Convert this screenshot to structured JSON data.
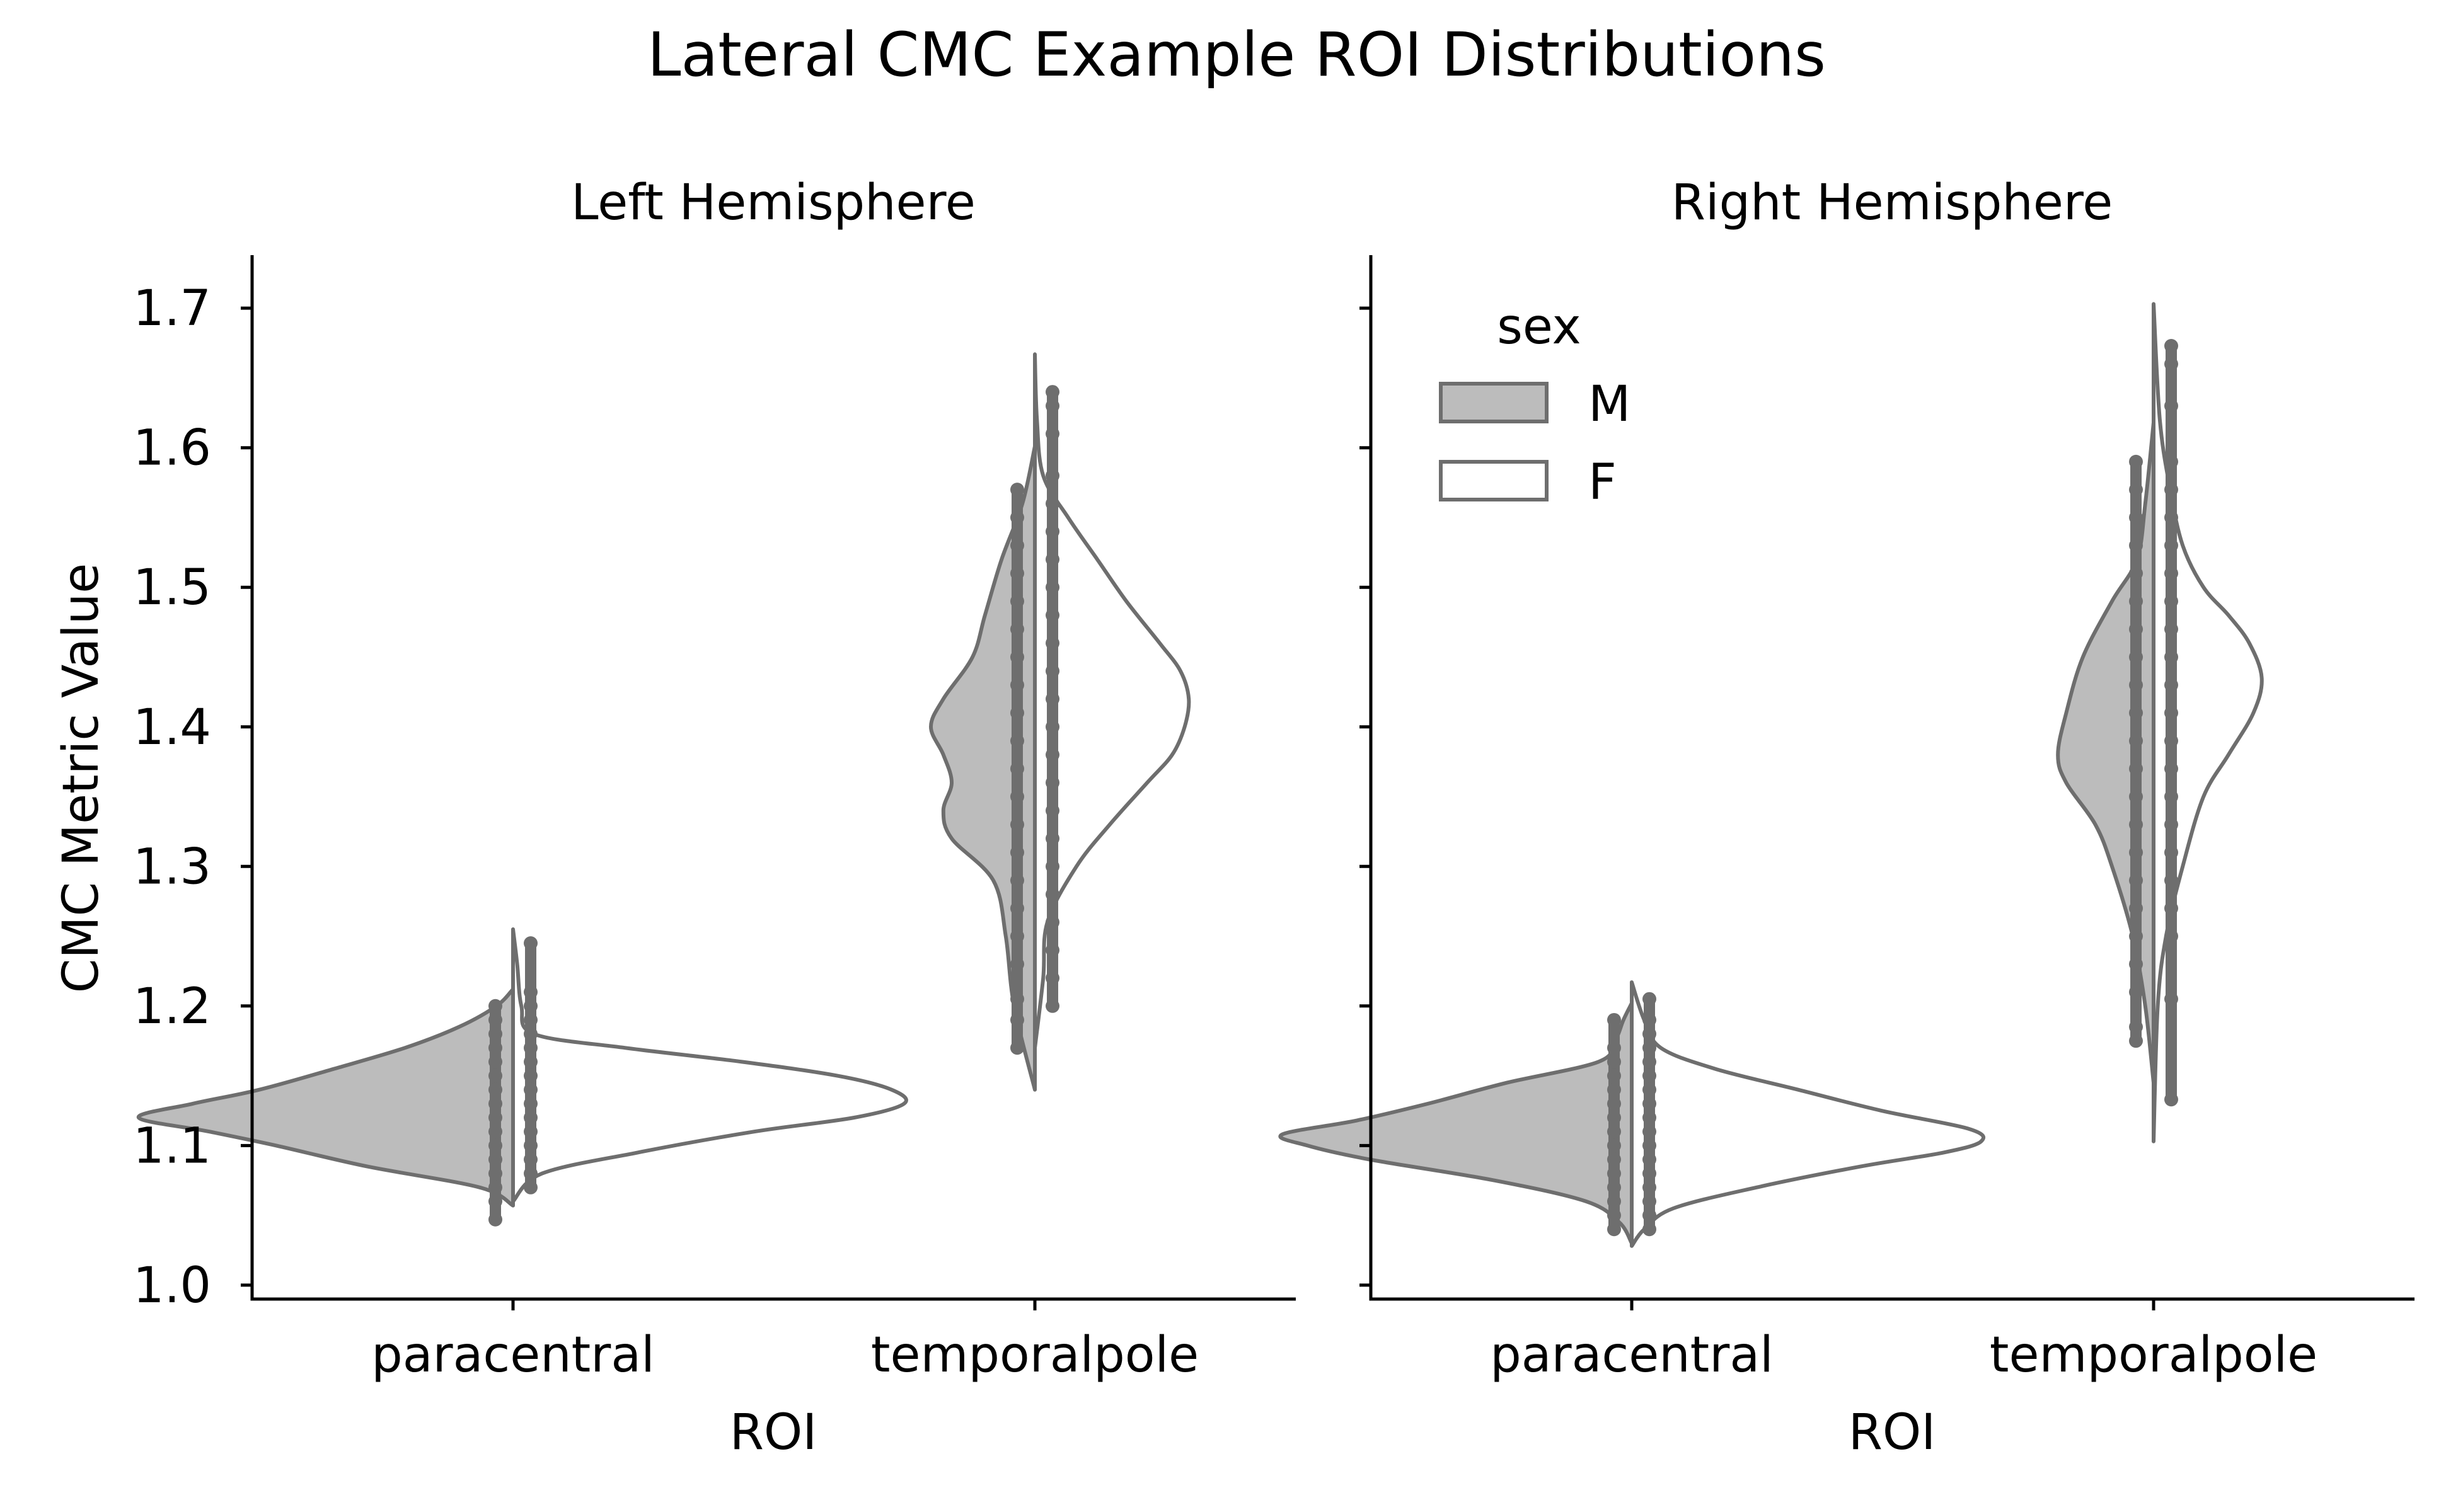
{
  "chart_data": {
    "type": "violin",
    "title": "Lateral CMC Example ROI Distributions",
    "ylabel": "CMC Metric Value",
    "xlabel": "ROI",
    "ylim": [
      0.99,
      1.738
    ],
    "yticks": [
      1.0,
      1.1,
      1.2,
      1.3,
      1.4,
      1.5,
      1.6,
      1.7
    ],
    "ytick_labels": [
      "1.0",
      "1.1",
      "1.2",
      "1.3",
      "1.4",
      "1.5",
      "1.6",
      "1.7"
    ],
    "categories": [
      "paracentral",
      "temporalpole"
    ],
    "split_by": "sex",
    "legend": {
      "title": "sex",
      "placement": "top-left",
      "panel": 1,
      "entries": [
        {
          "label": "M",
          "color": "#bcbcbc"
        },
        {
          "label": "F",
          "color": "#ffffff"
        }
      ]
    },
    "colors": {
      "M_fill": "#bcbcbc",
      "F_fill": "#ffffff",
      "stroke": "#6e6e6e"
    },
    "panels": [
      {
        "title": "Left Hemisphere",
        "violins": [
          {
            "category": "paracentral",
            "M": {
              "profile": [
                [
                  1.057,
                  0.0
                ],
                [
                  1.07,
                  0.08
                ],
                [
                  1.085,
                  0.35
                ],
                [
                  1.1,
                  0.57
                ],
                [
                  1.11,
                  0.73
                ],
                [
                  1.12,
                  0.9
                ],
                [
                  1.13,
                  0.77
                ],
                [
                  1.14,
                  0.61
                ],
                [
                  1.155,
                  0.43
                ],
                [
                  1.17,
                  0.26
                ],
                [
                  1.185,
                  0.13
                ],
                [
                  1.2,
                  0.04
                ],
                [
                  1.212,
                  0.0
                ]
              ],
              "points": [
                1.047,
                1.06,
                1.07,
                1.08,
                1.09,
                1.1,
                1.11,
                1.12,
                1.13,
                1.14,
                1.15,
                1.16,
                1.17,
                1.18,
                1.19,
                1.2
              ]
            },
            "F": {
              "profile": [
                [
                  1.06,
                  0.0
                ],
                [
                  1.08,
                  0.07
                ],
                [
                  1.095,
                  0.3
                ],
                [
                  1.11,
                  0.58
                ],
                [
                  1.12,
                  0.82
                ],
                [
                  1.13,
                  0.94
                ],
                [
                  1.14,
                  0.91
                ],
                [
                  1.15,
                  0.78
                ],
                [
                  1.16,
                  0.55
                ],
                [
                  1.17,
                  0.27
                ],
                [
                  1.18,
                  0.05
                ],
                [
                  1.2,
                  0.02
                ],
                [
                  1.23,
                  0.01
                ],
                [
                  1.255,
                  0.0
                ]
              ],
              "points": [
                1.07,
                1.08,
                1.09,
                1.1,
                1.11,
                1.12,
                1.13,
                1.14,
                1.15,
                1.16,
                1.17,
                1.18,
                1.19,
                1.2,
                1.21,
                1.245
              ]
            }
          },
          {
            "category": "temporalpole",
            "M": {
              "profile": [
                [
                  1.14,
                  0.0
                ],
                [
                  1.2,
                  0.05
                ],
                [
                  1.25,
                  0.07
                ],
                [
                  1.29,
                  0.1
                ],
                [
                  1.32,
                  0.2
                ],
                [
                  1.34,
                  0.22
                ],
                [
                  1.36,
                  0.2
                ],
                [
                  1.38,
                  0.22
                ],
                [
                  1.4,
                  0.25
                ],
                [
                  1.42,
                  0.22
                ],
                [
                  1.45,
                  0.15
                ],
                [
                  1.48,
                  0.12
                ],
                [
                  1.52,
                  0.08
                ],
                [
                  1.56,
                  0.03
                ],
                [
                  1.601,
                  0.0
                ]
              ],
              "points": [
                1.17,
                1.19,
                1.205,
                1.23,
                1.25,
                1.27,
                1.29,
                1.31,
                1.33,
                1.35,
                1.37,
                1.39,
                1.41,
                1.43,
                1.45,
                1.47,
                1.49,
                1.51,
                1.53,
                1.55,
                1.57
              ]
            },
            "F": {
              "profile": [
                [
                  1.17,
                  0.0
                ],
                [
                  1.22,
                  0.02
                ],
                [
                  1.26,
                  0.03
                ],
                [
                  1.3,
                  0.1
                ],
                [
                  1.33,
                  0.18
                ],
                [
                  1.36,
                  0.27
                ],
                [
                  1.38,
                  0.33
                ],
                [
                  1.4,
                  0.36
                ],
                [
                  1.42,
                  0.37
                ],
                [
                  1.44,
                  0.35
                ],
                [
                  1.46,
                  0.3
                ],
                [
                  1.49,
                  0.22
                ],
                [
                  1.52,
                  0.15
                ],
                [
                  1.55,
                  0.08
                ],
                [
                  1.58,
                  0.02
                ],
                [
                  1.62,
                  0.005
                ],
                [
                  1.667,
                  0.0
                ]
              ],
              "points": [
                1.2,
                1.22,
                1.24,
                1.26,
                1.28,
                1.3,
                1.32,
                1.34,
                1.36,
                1.38,
                1.4,
                1.42,
                1.44,
                1.46,
                1.48,
                1.5,
                1.52,
                1.54,
                1.56,
                1.58,
                1.61,
                1.63,
                1.64
              ]
            }
          }
        ]
      },
      {
        "title": "Right Hemisphere",
        "violins": [
          {
            "category": "paracentral",
            "M": {
              "profile": [
                [
                  1.03,
                  0.0
                ],
                [
                  1.045,
                  0.03
                ],
                [
                  1.06,
                  0.11
                ],
                [
                  1.075,
                  0.33
                ],
                [
                  1.09,
                  0.63
                ],
                [
                  1.1,
                  0.78
                ],
                [
                  1.108,
                  0.84
                ],
                [
                  1.118,
                  0.66
                ],
                [
                  1.13,
                  0.49
                ],
                [
                  1.145,
                  0.3
                ],
                [
                  1.16,
                  0.08
                ],
                [
                  1.175,
                  0.04
                ],
                [
                  1.19,
                  0.02
                ],
                [
                  1.202,
                  0.0
                ]
              ],
              "points": [
                1.04,
                1.05,
                1.06,
                1.07,
                1.08,
                1.09,
                1.1,
                1.11,
                1.12,
                1.13,
                1.14,
                1.15,
                1.16,
                1.17,
                1.19
              ]
            },
            "F": {
              "profile": [
                [
                  1.028,
                  0.0
                ],
                [
                  1.04,
                  0.03
                ],
                [
                  1.055,
                  0.1
                ],
                [
                  1.07,
                  0.3
                ],
                [
                  1.085,
                  0.55
                ],
                [
                  1.095,
                  0.75
                ],
                [
                  1.103,
                  0.84
                ],
                [
                  1.112,
                  0.81
                ],
                [
                  1.125,
                  0.6
                ],
                [
                  1.14,
                  0.4
                ],
                [
                  1.155,
                  0.2
                ],
                [
                  1.17,
                  0.07
                ],
                [
                  1.19,
                  0.03
                ],
                [
                  1.217,
                  0.0
                ]
              ],
              "points": [
                1.04,
                1.05,
                1.06,
                1.07,
                1.08,
                1.09,
                1.1,
                1.11,
                1.12,
                1.13,
                1.14,
                1.15,
                1.16,
                1.17,
                1.18,
                1.19,
                1.205
              ]
            }
          },
          {
            "category": "temporalpole",
            "M": {
              "profile": [
                [
                  1.145,
                  0.0
                ],
                [
                  1.2,
                  0.02
                ],
                [
                  1.25,
                  0.05
                ],
                [
                  1.3,
                  0.1
                ],
                [
                  1.33,
                  0.14
                ],
                [
                  1.36,
                  0.21
                ],
                [
                  1.38,
                  0.23
                ],
                [
                  1.41,
                  0.21
                ],
                [
                  1.45,
                  0.17
                ],
                [
                  1.49,
                  0.1
                ],
                [
                  1.52,
                  0.04
                ],
                [
                  1.56,
                  0.02
                ],
                [
                  1.618,
                  0.0
                ]
              ],
              "points": [
                1.175,
                1.185,
                1.21,
                1.23,
                1.25,
                1.27,
                1.29,
                1.31,
                1.33,
                1.35,
                1.37,
                1.39,
                1.41,
                1.43,
                1.45,
                1.47,
                1.49,
                1.51,
                1.53,
                1.55,
                1.57,
                1.59
              ]
            },
            "F": {
              "profile": [
                [
                  1.103,
                  0.0
                ],
                [
                  1.2,
                  0.01
                ],
                [
                  1.25,
                  0.03
                ],
                [
                  1.3,
                  0.07
                ],
                [
                  1.35,
                  0.12
                ],
                [
                  1.38,
                  0.18
                ],
                [
                  1.41,
                  0.24
                ],
                [
                  1.435,
                  0.26
                ],
                [
                  1.46,
                  0.23
                ],
                [
                  1.48,
                  0.18
                ],
                [
                  1.5,
                  0.12
                ],
                [
                  1.53,
                  0.07
                ],
                [
                  1.57,
                  0.04
                ],
                [
                  1.62,
                  0.015
                ],
                [
                  1.703,
                  0.0
                ]
              ],
              "points": [
                1.133,
                1.205,
                1.25,
                1.27,
                1.29,
                1.31,
                1.33,
                1.35,
                1.37,
                1.39,
                1.41,
                1.43,
                1.45,
                1.47,
                1.49,
                1.51,
                1.53,
                1.55,
                1.57,
                1.59,
                1.63,
                1.66,
                1.673
              ]
            }
          }
        ]
      }
    ]
  }
}
